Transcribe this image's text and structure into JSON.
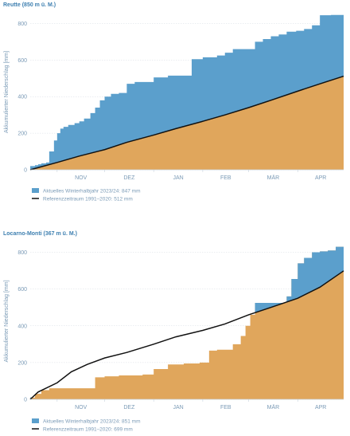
{
  "colors": {
    "current": "#5b9fcc",
    "reference_fill": "#e0a65c",
    "reference_line": "#111111",
    "text": "#7a9ab6",
    "title": "#3d7fb0",
    "grid": "#d7dde3",
    "axis": "#c9d3dc"
  },
  "chart_data": [
    {
      "type": "area",
      "title": "Reutte (850 m ü. M.)",
      "ylabel": "Akkumulierter Niederschlag [mm]",
      "ylim": [
        0,
        850
      ],
      "yticks": [
        "0",
        "200",
        "400",
        "600",
        "800"
      ],
      "xlim": [
        "2023-10-15",
        "2024-04-30"
      ],
      "month_labels": [
        "NOV",
        "DEZ",
        "JAN",
        "FEB",
        "MÄR",
        "APR"
      ],
      "grid": true,
      "legend_position": "bottom-left",
      "series": [
        {
          "name": "Aktuelles Winterhalbjahr 2023/24: 847 mm",
          "style": "step-area",
          "x": [
            "2023-10-15",
            "2023-10-18",
            "2023-10-20",
            "2023-10-22",
            "2023-10-25",
            "2023-10-27",
            "2023-10-30",
            "2023-11-01",
            "2023-11-03",
            "2023-11-05",
            "2023-11-08",
            "2023-11-12",
            "2023-11-15",
            "2023-11-18",
            "2023-11-22",
            "2023-11-25",
            "2023-11-28",
            "2023-12-01",
            "2023-12-05",
            "2023-12-10",
            "2023-12-15",
            "2023-12-20",
            "2023-12-28",
            "2024-01-01",
            "2024-01-10",
            "2024-01-20",
            "2024-01-25",
            "2024-02-01",
            "2024-02-10",
            "2024-02-15",
            "2024-02-20",
            "2024-02-28",
            "2024-03-05",
            "2024-03-10",
            "2024-03-15",
            "2024-03-20",
            "2024-03-25",
            "2024-03-31",
            "2024-04-05",
            "2024-04-10",
            "2024-04-15",
            "2024-04-22",
            "2024-04-30"
          ],
          "values": [
            20,
            25,
            30,
            35,
            40,
            100,
            160,
            200,
            225,
            235,
            245,
            255,
            265,
            280,
            310,
            340,
            380,
            400,
            415,
            420,
            470,
            480,
            480,
            505,
            515,
            515,
            605,
            615,
            625,
            640,
            660,
            660,
            700,
            715,
            730,
            740,
            755,
            760,
            770,
            790,
            845,
            847,
            847
          ]
        },
        {
          "name": "Referenzzeitraum 1991–2020: 512 mm",
          "style": "filled-line",
          "x": [
            "2023-10-15",
            "2023-11-01",
            "2023-11-15",
            "2023-12-01",
            "2023-12-15",
            "2024-01-01",
            "2024-01-15",
            "2024-02-01",
            "2024-02-15",
            "2024-03-01",
            "2024-03-15",
            "2024-04-01",
            "2024-04-15",
            "2024-04-30"
          ],
          "values": [
            0,
            40,
            75,
            110,
            150,
            190,
            225,
            265,
            300,
            340,
            380,
            430,
            470,
            512
          ]
        }
      ]
    },
    {
      "type": "area",
      "title": "Locarno-Monti (367 m ü. M.)",
      "ylabel": "Akkumulierter Niederschlag [mm]",
      "ylim": [
        0,
        850
      ],
      "yticks": [
        "0",
        "200",
        "400",
        "600",
        "800"
      ],
      "xlim": [
        "2023-10-15",
        "2024-04-30"
      ],
      "month_labels": [
        "NOV",
        "DEZ",
        "JAN",
        "FEB",
        "MÄR",
        "APR"
      ],
      "grid": true,
      "legend_position": "bottom-left",
      "series": [
        {
          "name": "Aktuelles Winterhalbjahr 2023/24: 851 mm",
          "style": "step-area",
          "x": [
            "2023-10-15",
            "2023-10-18",
            "2023-10-22",
            "2023-10-27",
            "2023-11-25",
            "2023-12-01",
            "2023-12-10",
            "2023-12-25",
            "2024-01-01",
            "2024-01-10",
            "2024-01-20",
            "2024-01-30",
            "2024-02-05",
            "2024-02-10",
            "2024-02-20",
            "2024-02-25",
            "2024-02-28",
            "2024-03-02",
            "2024-03-05",
            "2024-03-25",
            "2024-03-28",
            "2024-04-01",
            "2024-04-05",
            "2024-04-10",
            "2024-04-15",
            "2024-04-20",
            "2024-04-25",
            "2024-04-30"
          ],
          "values": [
            10,
            30,
            50,
            60,
            120,
            125,
            130,
            135,
            165,
            190,
            195,
            200,
            265,
            270,
            300,
            345,
            400,
            460,
            525,
            560,
            655,
            740,
            770,
            800,
            805,
            810,
            830,
            851
          ]
        },
        {
          "name": "Referenzzeitraum 1991–2020: 699 mm",
          "style": "line",
          "x": [
            "2023-10-15",
            "2023-10-20",
            "2023-11-01",
            "2023-11-10",
            "2023-11-20",
            "2023-12-01",
            "2023-12-15",
            "2024-01-01",
            "2024-01-15",
            "2024-02-01",
            "2024-02-15",
            "2024-03-01",
            "2024-03-15",
            "2024-04-01",
            "2024-04-15",
            "2024-04-30"
          ],
          "values": [
            0,
            40,
            90,
            150,
            190,
            225,
            255,
            300,
            340,
            375,
            410,
            460,
            500,
            550,
            610,
            699
          ]
        }
      ]
    }
  ]
}
